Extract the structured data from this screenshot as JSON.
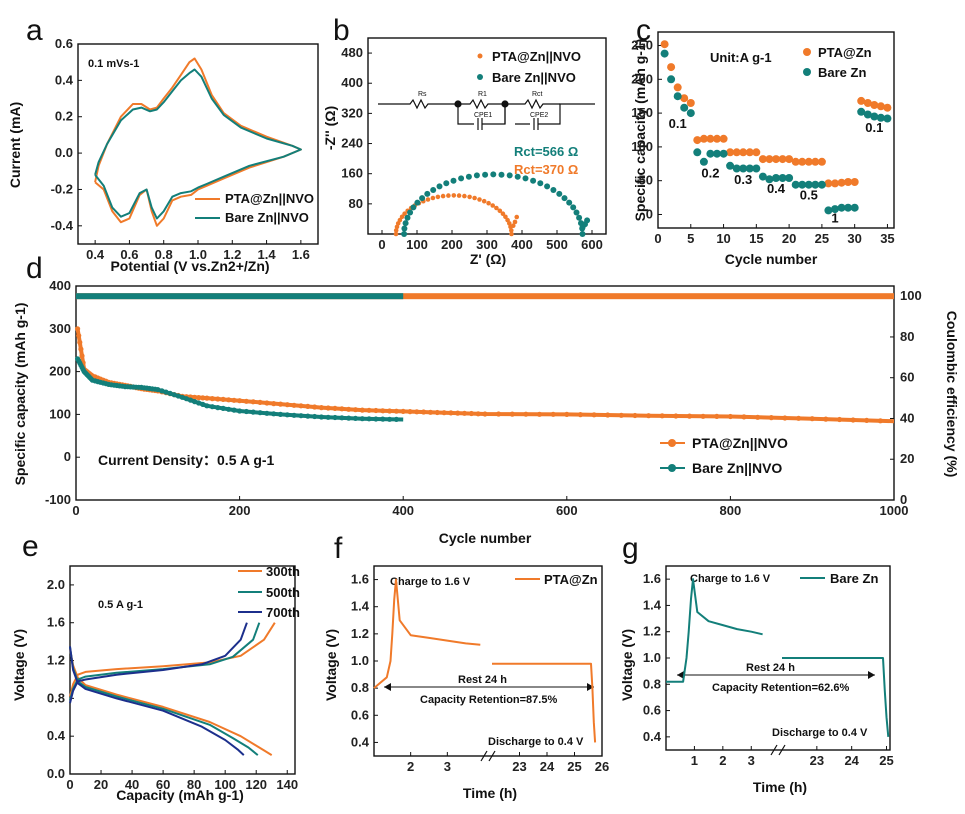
{
  "colors": {
    "orange": "#f07a2a",
    "teal": "#137f7a",
    "navy": "#1c2f8c",
    "gray": "#888888"
  },
  "chart_data": [
    {
      "id": "a",
      "type": "line",
      "panel_label": "a",
      "xlabel": "Potential (V vs.Zn2+/Zn)",
      "ylabel": "Current (mA)",
      "xlim": [
        0.3,
        1.7
      ],
      "ylim": [
        -0.5,
        0.6
      ],
      "xticks": [
        "0.4",
        "0.6",
        "0.8",
        "1.0",
        "1.2",
        "1.4",
        "1.6"
      ],
      "yticks": [
        "-0.4",
        "-0.2",
        "0.0",
        "0.2",
        "0.4",
        "0.6"
      ],
      "annotation": "0.1 mVs-1",
      "series": [
        {
          "name": "PTA@Zn||NVO",
          "color_key": "orange",
          "x": [
            0.4,
            0.42,
            0.47,
            0.55,
            0.62,
            0.67,
            0.72,
            0.76,
            0.8,
            0.85,
            0.9,
            0.95,
            0.98,
            1.02,
            1.08,
            1.15,
            1.25,
            1.4,
            1.55,
            1.6,
            1.5,
            1.3,
            1.15,
            1.05,
            1.0,
            0.96,
            0.9,
            0.85,
            0.8,
            0.76,
            0.73,
            0.7,
            0.66,
            0.6,
            0.55,
            0.5,
            0.45,
            0.4
          ],
          "y": [
            -0.16,
            -0.07,
            0.05,
            0.2,
            0.27,
            0.27,
            0.24,
            0.25,
            0.3,
            0.36,
            0.43,
            0.5,
            0.52,
            0.46,
            0.32,
            0.22,
            0.15,
            0.09,
            0.04,
            0.02,
            -0.02,
            -0.08,
            -0.14,
            -0.18,
            -0.2,
            -0.23,
            -0.24,
            -0.26,
            -0.36,
            -0.4,
            -0.32,
            -0.2,
            -0.23,
            -0.36,
            -0.38,
            -0.32,
            -0.2,
            -0.16
          ]
        },
        {
          "name": "Bare Zn||NVO",
          "color_key": "teal",
          "x": [
            0.4,
            0.42,
            0.47,
            0.55,
            0.62,
            0.67,
            0.72,
            0.76,
            0.8,
            0.85,
            0.9,
            0.95,
            0.98,
            1.02,
            1.08,
            1.15,
            1.25,
            1.4,
            1.55,
            1.6,
            1.5,
            1.3,
            1.15,
            1.05,
            1.0,
            0.96,
            0.9,
            0.85,
            0.8,
            0.76,
            0.73,
            0.7,
            0.66,
            0.6,
            0.55,
            0.5,
            0.45,
            0.4
          ],
          "y": [
            -0.12,
            -0.05,
            0.05,
            0.18,
            0.24,
            0.25,
            0.23,
            0.24,
            0.28,
            0.34,
            0.4,
            0.44,
            0.46,
            0.42,
            0.3,
            0.21,
            0.14,
            0.08,
            0.04,
            0.02,
            -0.02,
            -0.07,
            -0.13,
            -0.17,
            -0.19,
            -0.21,
            -0.22,
            -0.24,
            -0.32,
            -0.36,
            -0.3,
            -0.2,
            -0.22,
            -0.33,
            -0.35,
            -0.3,
            -0.18,
            -0.12
          ]
        }
      ]
    },
    {
      "id": "b",
      "type": "scatter",
      "panel_label": "b",
      "xlabel": "Z' (Ω)",
      "ylabel": "-Z'' (Ω)",
      "xlim": [
        -40,
        640
      ],
      "ylim": [
        0,
        520
      ],
      "xticks": [
        "0",
        "100",
        "200",
        "300",
        "400",
        "500",
        "600"
      ],
      "yticks": [
        "80",
        "160",
        "240",
        "320",
        "400",
        "480"
      ],
      "circuit_labels": [
        "Rs",
        "R1",
        "Rct",
        "CPE1",
        "CPE2"
      ],
      "annotations": [
        "Rct=566 Ω",
        "Rct=370 Ω"
      ],
      "series": [
        {
          "name": "PTA@Zn||NVO",
          "color_key": "orange",
          "center": 205,
          "radius": 165,
          "tail": [
            [
              375,
              22
            ],
            [
              380,
              32
            ],
            [
              385,
              45
            ]
          ]
        },
        {
          "name": "Bare Zn||NVO",
          "color_key": "teal",
          "center": 318,
          "radius": 255,
          "tail": [
            [
              573,
              18
            ],
            [
              580,
              26
            ],
            [
              586,
              36
            ]
          ]
        }
      ]
    },
    {
      "id": "c",
      "type": "scatter",
      "panel_label": "c",
      "xlabel": "Cycle number",
      "ylabel": "Specific capacity (mAh g-1)",
      "xlim": [
        0,
        36
      ],
      "ylim": [
        -20,
        270
      ],
      "xticks": [
        "0",
        "5",
        "10",
        "15",
        "20",
        "25",
        "30",
        "35"
      ],
      "yticks": [
        "0",
        "50",
        "100",
        "150",
        "200",
        "250"
      ],
      "unit_label": "Unit:A g-1",
      "rate_labels": [
        "0.1",
        "0.2",
        "0.3",
        "0.4",
        "0.5",
        "1",
        "0.1"
      ],
      "series": [
        {
          "name": "PTA@Zn",
          "color_key": "orange",
          "x": [
            1,
            2,
            3,
            4,
            5,
            6,
            7,
            8,
            9,
            10,
            11,
            12,
            13,
            14,
            15,
            16,
            17,
            18,
            19,
            20,
            21,
            22,
            23,
            24,
            25,
            26,
            27,
            28,
            29,
            30,
            31,
            32,
            33,
            34,
            35
          ],
          "y": [
            252,
            218,
            188,
            172,
            165,
            110,
            112,
            112,
            112,
            112,
            92,
            92,
            92,
            92,
            92,
            82,
            82,
            82,
            82,
            82,
            78,
            78,
            78,
            78,
            78,
            46,
            46,
            47,
            48,
            48,
            168,
            165,
            162,
            160,
            158
          ]
        },
        {
          "name": "Bare Zn",
          "color_key": "teal",
          "x": [
            1,
            2,
            3,
            4,
            5,
            6,
            7,
            8,
            9,
            10,
            11,
            12,
            13,
            14,
            15,
            16,
            17,
            18,
            19,
            20,
            21,
            22,
            23,
            24,
            25,
            26,
            27,
            28,
            29,
            30,
            31,
            32,
            33,
            34,
            35
          ],
          "y": [
            238,
            200,
            175,
            158,
            150,
            92,
            78,
            90,
            90,
            90,
            72,
            68,
            68,
            68,
            68,
            56,
            52,
            54,
            54,
            54,
            44,
            44,
            44,
            44,
            44,
            6,
            8,
            10,
            10,
            10,
            152,
            148,
            145,
            143,
            142
          ]
        }
      ]
    },
    {
      "id": "d",
      "type": "scatter",
      "panel_label": "d",
      "xlabel": "Cycle number",
      "ylabel": "Specific capacity (mAh g-1)",
      "ylabel_right": "Coulombic efficiency (%)",
      "xlim": [
        0,
        1000
      ],
      "ylim": [
        -100,
        400
      ],
      "ylim_right": [
        0,
        105
      ],
      "xticks": [
        "0",
        "200",
        "400",
        "600",
        "800",
        "1000"
      ],
      "yticks": [
        "-100",
        "0",
        "100",
        "200",
        "300",
        "400"
      ],
      "yticks_right": [
        "0",
        "20",
        "40",
        "60",
        "80",
        "100"
      ],
      "annotation": "Current Density：0.5 A g-1",
      "capacity_series": [
        {
          "name": "PTA@Zn||NVO",
          "color_key": "orange",
          "x": [
            2,
            10,
            20,
            40,
            60,
            80,
            100,
            130,
            160,
            200,
            250,
            300,
            350,
            400,
            450,
            500,
            600,
            700,
            800,
            900,
            1000
          ],
          "y": [
            300,
            205,
            190,
            175,
            168,
            160,
            155,
            142,
            138,
            132,
            124,
            116,
            110,
            107,
            104,
            101,
            100,
            97,
            95,
            90,
            84
          ]
        },
        {
          "name": "Bare Zn||NVO",
          "color_key": "teal",
          "x": [
            2,
            10,
            20,
            40,
            60,
            80,
            100,
            130,
            160,
            200,
            250,
            300,
            350,
            400
          ],
          "y": [
            230,
            200,
            180,
            170,
            165,
            163,
            158,
            140,
            120,
            108,
            100,
            94,
            90,
            88
          ]
        }
      ],
      "ce_series": [
        {
          "name": "PTA@Zn||NVO CE",
          "color_key": "orange",
          "x_range": [
            0,
            1000
          ],
          "y": 100
        },
        {
          "name": "Bare Zn||NVO CE",
          "color_key": "teal",
          "x_range": [
            0,
            400
          ],
          "y": 100
        }
      ]
    },
    {
      "id": "e",
      "type": "line",
      "panel_label": "e",
      "xlabel": "Capacity (mAh g-1)",
      "ylabel": "Voltage (V)",
      "xlim": [
        0,
        145
      ],
      "ylim": [
        0.0,
        2.2
      ],
      "xticks": [
        "0",
        "20",
        "40",
        "60",
        "80",
        "100",
        "120",
        "140"
      ],
      "yticks": [
        "0.0",
        "0.4",
        "0.8",
        "1.2",
        "1.6",
        "2.0"
      ],
      "annotation": "0.5 A g-1",
      "series": [
        {
          "name": "300th",
          "color_key": "orange",
          "charge_x": [
            0,
            2,
            5,
            10,
            30,
            60,
            90,
            110,
            125,
            132
          ],
          "charge_y": [
            0.82,
            0.95,
            1.05,
            1.08,
            1.11,
            1.14,
            1.18,
            1.25,
            1.42,
            1.6
          ],
          "discharge_x": [
            0,
            2,
            5,
            10,
            30,
            60,
            90,
            110,
            125,
            130
          ],
          "discharge_y": [
            1.32,
            1.15,
            1.02,
            0.94,
            0.84,
            0.71,
            0.55,
            0.4,
            0.25,
            0.2
          ]
        },
        {
          "name": "500th",
          "color_key": "teal",
          "charge_x": [
            0,
            2,
            5,
            10,
            30,
            60,
            90,
            105,
            118,
            122
          ],
          "charge_y": [
            0.78,
            0.9,
            1.0,
            1.03,
            1.07,
            1.11,
            1.16,
            1.24,
            1.42,
            1.6
          ],
          "discharge_x": [
            0,
            2,
            5,
            10,
            30,
            60,
            90,
            105,
            115,
            121
          ],
          "discharge_y": [
            1.34,
            1.12,
            0.98,
            0.92,
            0.82,
            0.69,
            0.52,
            0.38,
            0.28,
            0.2
          ]
        },
        {
          "name": "700th",
          "color_key": "navy",
          "charge_x": [
            0,
            2,
            5,
            10,
            30,
            60,
            85,
            100,
            110,
            114
          ],
          "charge_y": [
            0.75,
            0.88,
            0.98,
            1.0,
            1.05,
            1.1,
            1.16,
            1.25,
            1.42,
            1.6
          ],
          "discharge_x": [
            0,
            2,
            5,
            10,
            30,
            60,
            85,
            100,
            108,
            112
          ],
          "discharge_y": [
            1.35,
            1.1,
            0.96,
            0.9,
            0.8,
            0.67,
            0.5,
            0.36,
            0.26,
            0.2
          ]
        }
      ]
    },
    {
      "id": "f",
      "type": "line",
      "panel_label": "f",
      "xlabel": "Time (h)",
      "ylabel": "Voltage (V)",
      "ylim": [
        0.3,
        1.7
      ],
      "xticks": [
        "2",
        "3",
        "23",
        "24",
        "25",
        "26"
      ],
      "yticks": [
        "0.4",
        "0.6",
        "0.8",
        "1.0",
        "1.2",
        "1.4",
        "1.6"
      ],
      "labels": {
        "charge": "Charge to 1.6 V",
        "rest": "Rest 24 h",
        "retention": "Capacity Retention=87.5%",
        "discharge": "Discharge to 0.4 V",
        "legend": "PTA@Zn"
      },
      "series": [
        {
          "name": "PTA@Zn",
          "color_key": "orange",
          "left_x": [
            1.0,
            1.35,
            1.45,
            1.5,
            1.55,
            1.6,
            1.7,
            2.0,
            2.5,
            3.0,
            3.5,
            3.9
          ],
          "left_y": [
            0.8,
            0.88,
            1.0,
            1.2,
            1.45,
            1.6,
            1.3,
            1.19,
            1.17,
            1.15,
            1.13,
            1.12
          ],
          "right_x": [
            22.0,
            23.0,
            24.0,
            25.0,
            25.6,
            25.65,
            25.7,
            25.75
          ],
          "right_y": [
            0.98,
            0.98,
            0.98,
            0.98,
            0.98,
            0.8,
            0.55,
            0.4
          ]
        }
      ]
    },
    {
      "id": "g",
      "type": "line",
      "panel_label": "g",
      "xlabel": "Time (h)",
      "ylabel": "Voltage (V)",
      "ylim": [
        0.3,
        1.7
      ],
      "xticks": [
        "1",
        "2",
        "3",
        "23",
        "24",
        "25"
      ],
      "yticks": [
        "0.4",
        "0.6",
        "0.8",
        "1.0",
        "1.2",
        "1.4",
        "1.6"
      ],
      "labels": {
        "charge": "Charge to 1.6 V",
        "rest": "Rest 24 h",
        "retention": "Capacity Retention=62.6%",
        "discharge": "Discharge to 0.4 V",
        "legend": "Bare Zn"
      },
      "series": [
        {
          "name": "Bare Zn",
          "color_key": "teal",
          "left_x": [
            0.0,
            0.6,
            0.72,
            0.8,
            0.88,
            0.95,
            1.1,
            1.5,
            2.0,
            2.5,
            3.0,
            3.4
          ],
          "left_y": [
            0.82,
            0.82,
            1.0,
            1.2,
            1.45,
            1.6,
            1.35,
            1.28,
            1.25,
            1.22,
            1.2,
            1.18
          ],
          "right_x": [
            22.0,
            23.0,
            24.0,
            24.9,
            24.95,
            25.0,
            25.05
          ],
          "right_y": [
            1.0,
            1.0,
            1.0,
            1.0,
            0.75,
            0.55,
            0.4
          ]
        }
      ]
    }
  ]
}
